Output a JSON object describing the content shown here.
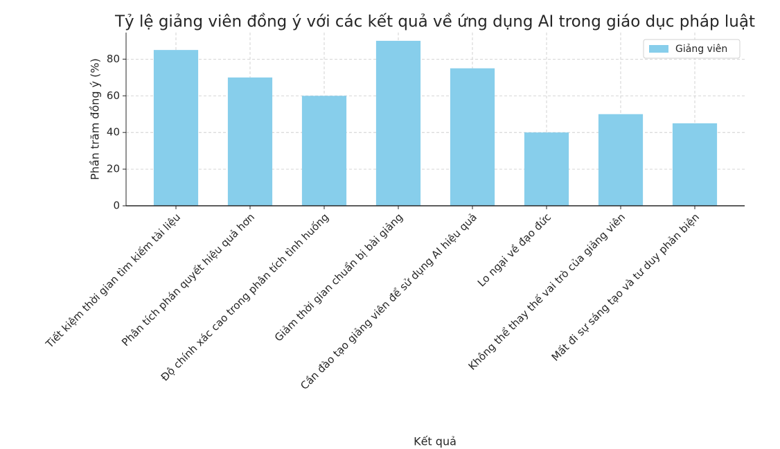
{
  "chart_data": {
    "type": "bar",
    "title": "Tỷ lệ giảng viên đồng ý với các kết quả về ứng dụng AI trong giáo dục pháp luật",
    "xlabel": "Kết quả",
    "ylabel": "Phần trăm đồng ý (%)",
    "categories": [
      "Tiết kiệm thời gian tìm kiếm tài liệu",
      "Phân tích phán quyết hiệu quả hơn",
      "Độ chính xác cao trong phân tích tình huống",
      "Giảm thời gian chuẩn bị bài giảng",
      "Cần đào tạo giảng viên để sử dụng AI hiệu quả",
      "Lo ngại về đạo đức",
      "Không thể thay thế vai trò của giảng viên",
      "Mất đi sự sáng tạo và tư duy phản biện"
    ],
    "series": [
      {
        "name": "Giảng viên",
        "color": "#87ceeb",
        "values": [
          85,
          70,
          60,
          90,
          75,
          40,
          50,
          45
        ]
      }
    ],
    "ylim": [
      0,
      94.5
    ],
    "yticks": [
      0,
      20,
      40,
      60,
      80
    ],
    "grid": true,
    "legend": "upper right"
  }
}
